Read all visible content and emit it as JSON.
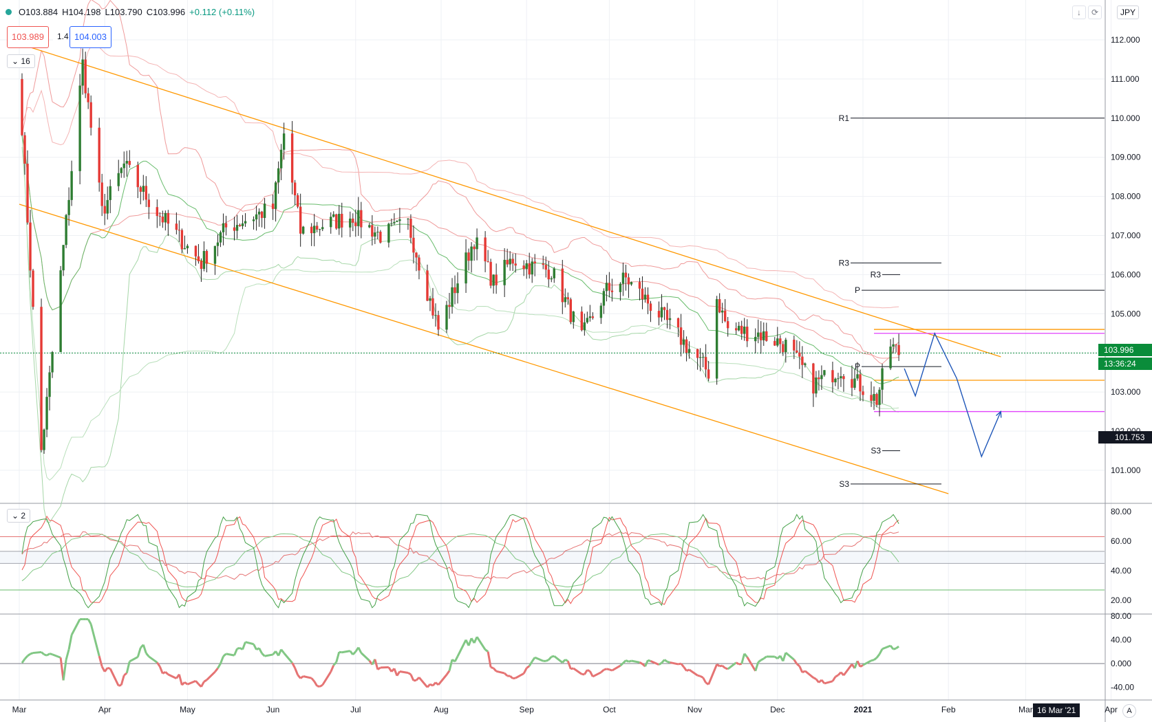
{
  "legend": {
    "open": "O103.884",
    "high": "H104.198",
    "low": "L103.790",
    "close": "C103.996",
    "change": "+0.112 (+0.11%)"
  },
  "trade": {
    "sell": "103.989",
    "spread": "1.4",
    "buy": "104.003"
  },
  "pane_labels": {
    "main": "16",
    "osc1": "2"
  },
  "currency": "JPY",
  "price_tags": {
    "last": "103.996",
    "countdown": "13:36:24",
    "crosshair": "101.753"
  },
  "crosshair_date": "16 Mar '21",
  "auto_label": "A",
  "colors": {
    "up": "#2e7d32",
    "down": "#e53935",
    "channel": "#ff9800",
    "projection": "#1e56b8",
    "magenta": "#e040fb",
    "bb_upper": "#ef9a9a",
    "bb_lower": "#a5d6a7",
    "pos_hist": "#81c784",
    "neg_hist": "#e57373",
    "last_price": "#0a8c3a"
  },
  "chart_data": [
    {
      "type": "candlestick",
      "title": "",
      "ylim": [
        100.4,
        113.2
      ],
      "y_ticks": [
        "101.000",
        "102.000",
        "103.000",
        "104.000",
        "105.000",
        "106.000",
        "107.000",
        "108.000",
        "109.000",
        "110.000",
        "111.000",
        "112.000"
      ],
      "x_ticks": [
        "Mar",
        "Apr",
        "May",
        "Jun",
        "Jul",
        "Aug",
        "Sep",
        "Oct",
        "Nov",
        "Dec",
        "2021",
        "Feb",
        "Mar",
        "Apr"
      ],
      "pivot_levels": [
        {
          "label": "R1",
          "value": 110.0
        },
        {
          "label": "R3",
          "value": 106.3
        },
        {
          "label": "R3",
          "value": 106.0
        },
        {
          "label": "P",
          "value": 105.6
        },
        {
          "label": "P",
          "value": 103.65
        },
        {
          "label": "S3",
          "value": 101.5
        },
        {
          "label": "S3",
          "value": 100.65
        }
      ],
      "horizontal_lines": [
        {
          "value": 104.6,
          "color": "channel"
        },
        {
          "value": 104.5,
          "color": "magenta"
        },
        {
          "value": 103.3,
          "color": "channel"
        },
        {
          "value": 102.5,
          "color": "magenta"
        },
        {
          "value": 103.996,
          "color": "last_price"
        }
      ],
      "channel": {
        "upper": [
          [
            "2020-03-01",
            111.9
          ],
          [
            "2021-02-20",
            103.9
          ]
        ],
        "lower": [
          [
            "2020-03-01",
            107.8
          ],
          [
            "2021-02-01",
            100.4
          ]
        ]
      },
      "projection_path": [
        [
          "2021-01-16",
          103.6
        ],
        [
          "2021-01-20",
          102.9
        ],
        [
          "2021-01-27",
          104.5
        ],
        [
          "2021-02-04",
          103.35
        ],
        [
          "2021-02-13",
          101.35
        ],
        [
          "2021-02-20",
          102.5
        ]
      ],
      "key_points": [
        {
          "date": "2020-03-09",
          "low": 101.2
        },
        {
          "date": "2020-03-24",
          "high": 111.7
        },
        {
          "date": "2020-06-05",
          "high": 109.8
        },
        {
          "date": "2020-07-31",
          "low": 104.2
        },
        {
          "date": "2020-09-21",
          "low": 104.0
        },
        {
          "date": "2020-11-06",
          "low": 103.2
        },
        {
          "date": "2020-11-09",
          "high": 105.6
        },
        {
          "date": "2021-01-06",
          "low": 102.6
        },
        {
          "date": "2021-01-11",
          "high": 104.4
        },
        {
          "date": "2021-01-14",
          "close": 103.996
        }
      ]
    },
    {
      "type": "line",
      "ylim": [
        10,
        82
      ],
      "y_ticks": [
        "20.00",
        "40.00",
        "60.00",
        "80.00"
      ],
      "levels": [
        63,
        53,
        45,
        27
      ]
    },
    {
      "type": "area",
      "ylim": [
        -58,
        82
      ],
      "y_ticks": [
        "-40.00",
        "0.000",
        "40.00",
        "80.00"
      ],
      "zero": 0
    }
  ]
}
